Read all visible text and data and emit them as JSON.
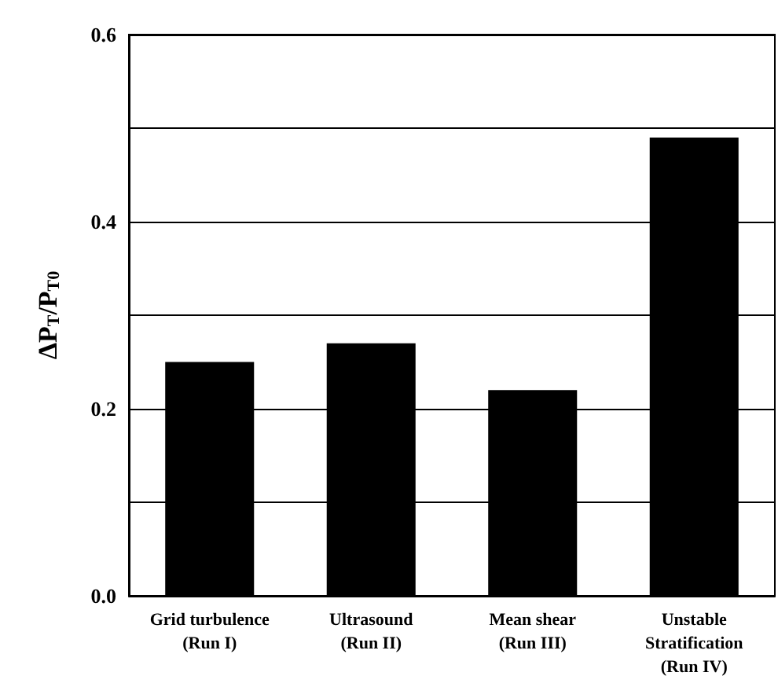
{
  "chart_data": {
    "type": "bar",
    "ylabel": "ΔP$_{T}$/P$_{T0}$",
    "categories": [
      "Grid turbulence\n(Run I)",
      "Ultrasound\n(Run II)",
      "Mean shear\n(Run III)",
      "Unstable\nStratification\n(Run IV)"
    ],
    "values": [
      0.25,
      0.27,
      0.22,
      0.49
    ],
    "color": "#000000",
    "ylim": [
      0,
      0.6
    ],
    "yticks": [
      {
        "value": 0,
        "label": "0.0"
      },
      {
        "value": 0.1,
        "label": null
      },
      {
        "value": 0.2,
        "label": "0.2"
      },
      {
        "value": 0.3,
        "label": null
      },
      {
        "value": 0.4,
        "label": "0.4"
      },
      {
        "value": 0.5,
        "label": null
      },
      {
        "value": 0.6,
        "label": "0.6"
      }
    ],
    "grid": "y"
  }
}
